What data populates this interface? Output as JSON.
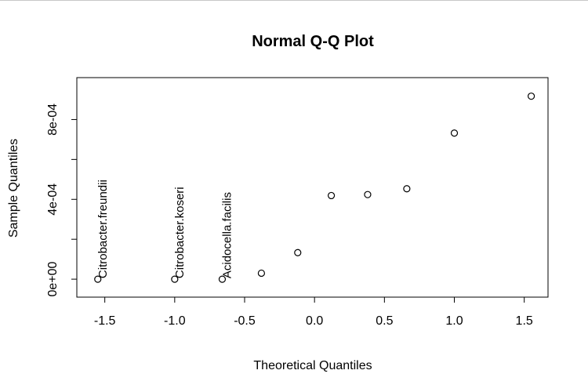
{
  "chart_data": {
    "type": "scatter",
    "title": "Normal Q-Q Plot",
    "xlabel": "Theoretical Quantiles",
    "ylabel": "Sample Quantiles",
    "xlim": [
      -1.7,
      1.67
    ],
    "ylim": [
      -9e-05,
      0.00101
    ],
    "xticks": [
      -1.5,
      -1.0,
      -0.5,
      0.0,
      0.5,
      1.0,
      1.5
    ],
    "xtick_labels": [
      "-1.5",
      "-1.0",
      "-0.5",
      "0.0",
      "0.5",
      "1.0",
      "1.5"
    ],
    "yticks": [
      0,
      0.0002,
      0.0004,
      0.0006,
      0.0008
    ],
    "ytick_labels": [
      "0e+00",
      "",
      "4e-04",
      "",
      "8e-04"
    ],
    "points": [
      {
        "x": -1.55,
        "y": 0.0
      },
      {
        "x": -1.0,
        "y": 0.0
      },
      {
        "x": -0.66,
        "y": 0.0
      },
      {
        "x": -0.38,
        "y": 3e-05
      },
      {
        "x": -0.12,
        "y": 0.000133
      },
      {
        "x": 0.12,
        "y": 0.000419
      },
      {
        "x": 0.38,
        "y": 0.000424
      },
      {
        "x": 0.66,
        "y": 0.000453
      },
      {
        "x": 1.0,
        "y": 0.000732
      },
      {
        "x": 1.55,
        "y": 0.000917
      }
    ],
    "annotations": [
      {
        "text": "Citrobacter.freundii",
        "x": -1.55,
        "y": 0.0
      },
      {
        "text": "Citrobacter.koseri",
        "x": -1.0,
        "y": 0.0
      },
      {
        "text": "Acidocella.facilis",
        "x": -0.66,
        "y": 0.0
      }
    ]
  }
}
